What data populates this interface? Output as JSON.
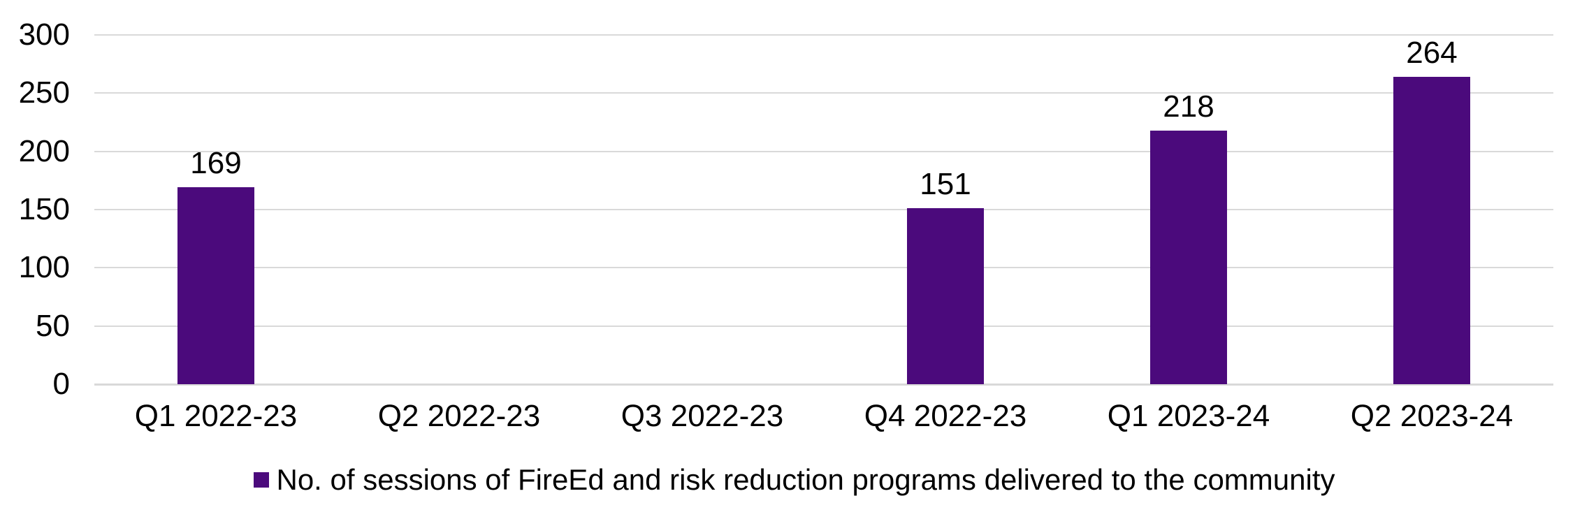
{
  "chart_data": {
    "type": "bar",
    "categories": [
      "Q1 2022-23",
      "Q2 2022-23",
      "Q3 2022-23",
      "Q4 2022-23",
      "Q1 2023-24",
      "Q2 2023-24"
    ],
    "series": [
      {
        "name": "No. of sessions of FireEd and risk reduction programs delivered to the community",
        "values": [
          169,
          null,
          null,
          151,
          218,
          264
        ],
        "color": "#4B0A7C"
      }
    ],
    "data_labels": [
      "169",
      "",
      "",
      "151",
      "218",
      "264"
    ],
    "title": "",
    "xlabel": "",
    "ylabel": "",
    "ylim": [
      0,
      300
    ],
    "yticks": [
      0,
      50,
      100,
      150,
      200,
      250,
      300
    ],
    "grid": true,
    "legend_position": "bottom",
    "gridline_color": "#D9D9D9",
    "text_color": "#000000",
    "background_color": "#FFFFFF"
  }
}
